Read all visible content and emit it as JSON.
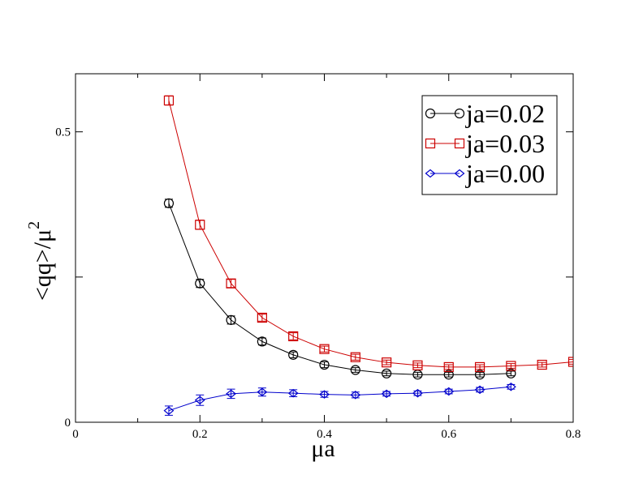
{
  "chart_data": {
    "type": "line",
    "title": "",
    "xlabel": "μa",
    "ylabel": "<qq>/μ",
    "ylabel_superscript": "2",
    "xlim": [
      0,
      0.8
    ],
    "ylim": [
      0,
      0.6
    ],
    "xticks": [
      {
        "value": 0,
        "label": "0"
      },
      {
        "value": 0.2,
        "label": "0.2"
      },
      {
        "value": 0.4,
        "label": "0.4"
      },
      {
        "value": 0.6,
        "label": "0.6"
      },
      {
        "value": 0.8,
        "label": "0.8"
      }
    ],
    "yticks": [
      {
        "value": 0,
        "label": "0"
      },
      {
        "value": 0.25,
        "label": ""
      },
      {
        "value": 0.5,
        "label": "0.5"
      }
    ],
    "grid": false,
    "legend_position": "top-right",
    "series": [
      {
        "name": "ja=0.02",
        "color": "#000000",
        "marker": "circle",
        "x": [
          0.15,
          0.2,
          0.25,
          0.3,
          0.35,
          0.4,
          0.45,
          0.5,
          0.55,
          0.6,
          0.65,
          0.7
        ],
        "y": [
          0.377,
          0.239,
          0.176,
          0.139,
          0.116,
          0.099,
          0.09,
          0.084,
          0.082,
          0.082,
          0.082,
          0.084
        ],
        "err": [
          0.007,
          0.007,
          0.007,
          0.006,
          0.005,
          0.005,
          0.004,
          0.004,
          0.004,
          0.004,
          0.004,
          0.004
        ]
      },
      {
        "name": "ja=0.03",
        "color": "#cc0000",
        "marker": "square",
        "x": [
          0.15,
          0.2,
          0.25,
          0.3,
          0.35,
          0.4,
          0.45,
          0.5,
          0.55,
          0.6,
          0.65,
          0.7,
          0.75,
          0.8
        ],
        "y": [
          0.554,
          0.34,
          0.239,
          0.18,
          0.148,
          0.126,
          0.112,
          0.103,
          0.098,
          0.095,
          0.095,
          0.097,
          0.099,
          0.104
        ],
        "err": [
          0.008,
          0.008,
          0.007,
          0.006,
          0.006,
          0.005,
          0.005,
          0.004,
          0.004,
          0.004,
          0.004,
          0.004,
          0.004,
          0.004
        ]
      },
      {
        "name": "ja=0.00",
        "color": "#0000cc",
        "marker": "diamond",
        "x": [
          0.15,
          0.2,
          0.25,
          0.3,
          0.35,
          0.4,
          0.45,
          0.5,
          0.55,
          0.6,
          0.65,
          0.7
        ],
        "y": [
          0.02,
          0.038,
          0.049,
          0.052,
          0.05,
          0.048,
          0.047,
          0.049,
          0.05,
          0.053,
          0.056,
          0.061
        ],
        "err": [
          0.008,
          0.009,
          0.008,
          0.007,
          0.006,
          0.005,
          0.005,
          0.004,
          0.004,
          0.004,
          0.004,
          0.004
        ]
      }
    ]
  }
}
